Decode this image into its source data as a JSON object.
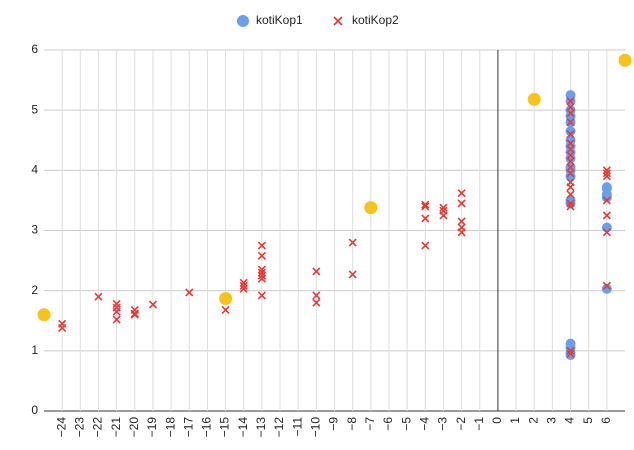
{
  "chart_data": {
    "type": "scatter",
    "xlim": [
      -25,
      7
    ],
    "ylim": [
      0,
      6
    ],
    "xticks": [
      {
        "value": -24,
        "label": "−24"
      },
      {
        "value": -23,
        "label": "−23"
      },
      {
        "value": -22,
        "label": "−22"
      },
      {
        "value": -21,
        "label": "−21"
      },
      {
        "value": -20,
        "label": "−20"
      },
      {
        "value": -19,
        "label": "−19"
      },
      {
        "value": -18,
        "label": "−18"
      },
      {
        "value": -17,
        "label": "−17"
      },
      {
        "value": -16,
        "label": "−16"
      },
      {
        "value": -15,
        "label": "−15"
      },
      {
        "value": -14,
        "label": "−14"
      },
      {
        "value": -13,
        "label": "−13"
      },
      {
        "value": -12,
        "label": "−12"
      },
      {
        "value": -11,
        "label": "−11"
      },
      {
        "value": -10,
        "label": "−10"
      },
      {
        "value": -9,
        "label": "−9"
      },
      {
        "value": -8,
        "label": "−8"
      },
      {
        "value": -7,
        "label": "−7"
      },
      {
        "value": -6,
        "label": "−6"
      },
      {
        "value": -5,
        "label": "−5"
      },
      {
        "value": -4,
        "label": "−4"
      },
      {
        "value": -3,
        "label": "−3"
      },
      {
        "value": -2,
        "label": "−2"
      },
      {
        "value": -1,
        "label": "−1"
      },
      0,
      1,
      2,
      3,
      4,
      5,
      6
    ],
    "yticks": [
      0,
      1,
      2,
      3,
      4,
      5,
      6
    ],
    "grid": true,
    "legend": "top",
    "series": [
      {
        "name": "kotiKop1",
        "color": "#6d9eeb",
        "marker": "circle",
        "x": [
          4,
          4,
          4,
          4,
          4,
          4,
          4,
          4,
          4,
          4,
          4,
          4,
          4,
          4,
          4,
          4,
          4,
          4,
          4,
          6,
          6,
          6,
          6,
          6,
          6
        ],
        "values": [
          5.25,
          5.15,
          5.0,
          4.9,
          4.8,
          4.65,
          4.5,
          4.4,
          4.3,
          4.2,
          4.05,
          4.0,
          3.9,
          3.5,
          3.45,
          1.12,
          1.05,
          0.97,
          0.93,
          3.72,
          3.7,
          3.6,
          3.55,
          3.05,
          2.03
        ]
      },
      {
        "name": "kotiKop2",
        "color": "#e53935",
        "marker": "cross",
        "x": [
          -24,
          -24,
          -22,
          -21,
          -21,
          -21,
          -21,
          -20,
          -20,
          -20,
          -19,
          -17,
          -15,
          -14,
          -14,
          -14,
          -13,
          -13,
          -13,
          -13,
          -13,
          -13,
          -13,
          -10,
          -10,
          -10,
          -8,
          -8,
          -4,
          -4,
          -4,
          -4,
          -3,
          -3,
          -3,
          -2,
          -2,
          -2,
          -2,
          -2,
          4,
          4,
          4,
          4,
          4,
          4,
          4,
          4,
          4,
          4,
          4,
          4,
          4,
          4,
          4,
          4,
          4,
          4,
          6,
          6,
          6,
          6,
          6,
          6,
          6
        ],
        "values": [
          1.45,
          1.38,
          1.9,
          1.78,
          1.72,
          1.65,
          1.52,
          1.68,
          1.62,
          1.6,
          1.77,
          1.97,
          1.68,
          2.13,
          2.08,
          2.03,
          2.75,
          2.58,
          2.35,
          2.3,
          2.25,
          2.2,
          1.92,
          2.32,
          1.92,
          1.8,
          2.8,
          2.27,
          3.43,
          3.4,
          3.2,
          2.75,
          3.38,
          3.33,
          3.25,
          3.62,
          3.45,
          3.15,
          3.05,
          2.97,
          5.15,
          5.05,
          4.95,
          4.8,
          4.6,
          4.45,
          4.35,
          4.25,
          4.15,
          4.05,
          3.95,
          3.8,
          3.72,
          3.6,
          3.45,
          3.4,
          1.0,
          0.95,
          4.0,
          3.95,
          3.9,
          3.5,
          3.25,
          2.97,
          2.08
        ]
      },
      {
        "color": "#f6c21b",
        "marker": "circle",
        "x": [
          -25,
          -15,
          -7,
          2,
          7
        ],
        "values": [
          1.6,
          1.87,
          3.38,
          5.18,
          5.83
        ]
      }
    ]
  }
}
